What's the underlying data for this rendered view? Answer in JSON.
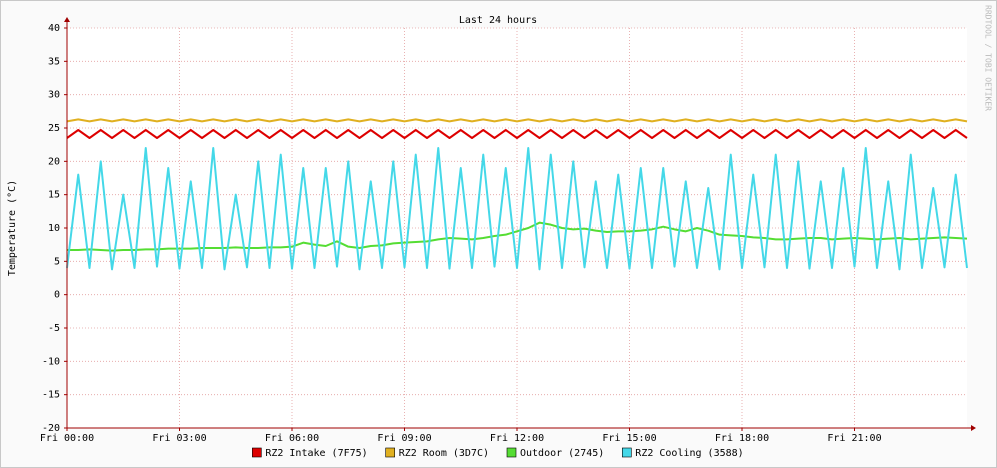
{
  "chart_data": {
    "type": "line",
    "title": "Last 24 hours",
    "y_label": "Temperature (°C)",
    "watermark": "RRDTOOL / TOBI OETIKER",
    "x": [
      0,
      0.3,
      0.6,
      0.9,
      1.2,
      1.5,
      1.8,
      2.1,
      2.4,
      2.7,
      3,
      3.3,
      3.6,
      3.9,
      4.2,
      4.5,
      4.8,
      5.1,
      5.4,
      5.7,
      6,
      6.3,
      6.6,
      6.9,
      7.2,
      7.5,
      7.8,
      8.1,
      8.4,
      8.7,
      9,
      9.3,
      9.6,
      9.9,
      10.2,
      10.5,
      10.8,
      11.1,
      11.4,
      11.7,
      12,
      12.3,
      12.6,
      12.9,
      13.2,
      13.5,
      13.8,
      14.1,
      14.4,
      14.7,
      15,
      15.3,
      15.6,
      15.9,
      16.2,
      16.5,
      16.8,
      17.1,
      17.4,
      17.7,
      18,
      18.3,
      18.6,
      18.9,
      19.2,
      19.5,
      19.8,
      20.1,
      20.4,
      20.7,
      21,
      21.3,
      21.6,
      21.9,
      22.2,
      22.5,
      22.8,
      23.1,
      23.4,
      23.7,
      24
    ],
    "xlim": [
      0,
      24
    ],
    "xticks": [
      {
        "value": 0,
        "label": "Fri 00:00"
      },
      {
        "value": 3,
        "label": "Fri 03:00"
      },
      {
        "value": 6,
        "label": "Fri 06:00"
      },
      {
        "value": 9,
        "label": "Fri 09:00"
      },
      {
        "value": 12,
        "label": "Fri 12:00"
      },
      {
        "value": 15,
        "label": "Fri 15:00"
      },
      {
        "value": 18,
        "label": "Fri 18:00"
      },
      {
        "value": 21,
        "label": "Fri 21:00"
      }
    ],
    "ylim": [
      -20,
      40
    ],
    "yticks": [
      -20,
      -15,
      -10,
      -5,
      0,
      5,
      10,
      15,
      20,
      25,
      30,
      35,
      40
    ],
    "grid": true,
    "legend": "bottom",
    "series": [
      {
        "name": "RZ2 Intake (7F75)",
        "color": "#dd0000",
        "values": [
          23.5,
          24.7,
          23.5,
          24.7,
          23.5,
          24.7,
          23.5,
          24.7,
          23.5,
          24.7,
          23.5,
          24.7,
          23.5,
          24.7,
          23.5,
          24.7,
          23.5,
          24.7,
          23.5,
          24.7,
          23.5,
          24.7,
          23.5,
          24.7,
          23.5,
          24.7,
          23.5,
          24.7,
          23.5,
          24.7,
          23.5,
          24.7,
          23.5,
          24.7,
          23.5,
          24.7,
          23.5,
          24.7,
          23.5,
          24.7,
          23.5,
          24.7,
          23.5,
          24.7,
          23.5,
          24.7,
          23.5,
          24.7,
          23.5,
          24.7,
          23.5,
          24.7,
          23.5,
          24.7,
          23.5,
          24.7,
          23.5,
          24.7,
          23.5,
          24.7,
          23.5,
          24.7,
          23.5,
          24.7,
          23.5,
          24.7,
          23.5,
          24.7,
          23.5,
          24.7,
          23.5,
          24.7,
          23.5,
          24.7,
          23.5,
          24.7,
          23.5,
          24.7,
          23.5,
          24.7,
          23.5
        ]
      },
      {
        "name": "RZ2 Room (3D7C)",
        "color": "#e0b020",
        "values": [
          26,
          26.3,
          26,
          26.3,
          26,
          26.3,
          26,
          26.3,
          26,
          26.3,
          26,
          26.3,
          26,
          26.3,
          26,
          26.3,
          26,
          26.3,
          26,
          26.3,
          26,
          26.3,
          26,
          26.3,
          26,
          26.3,
          26,
          26.3,
          26,
          26.3,
          26,
          26.3,
          26,
          26.3,
          26,
          26.3,
          26,
          26.3,
          26,
          26.3,
          26,
          26.3,
          26,
          26.3,
          26,
          26.3,
          26,
          26.3,
          26,
          26.3,
          26,
          26.3,
          26,
          26.3,
          26,
          26.3,
          26,
          26.3,
          26,
          26.3,
          26,
          26.3,
          26,
          26.3,
          26,
          26.3,
          26,
          26.3,
          26,
          26.3,
          26,
          26.3,
          26,
          26.3,
          26,
          26.3,
          26,
          26.3,
          26,
          26.3,
          26
        ]
      },
      {
        "name": "Outdoor (2745)",
        "color": "#55dd33",
        "values": [
          6.7,
          6.7,
          6.8,
          6.7,
          6.6,
          6.7,
          6.7,
          6.8,
          6.8,
          6.9,
          6.9,
          6.9,
          7.0,
          7.0,
          7.0,
          7.1,
          7.0,
          7.0,
          7.1,
          7.1,
          7.2,
          7.8,
          7.5,
          7.3,
          8.0,
          7.2,
          7.0,
          7.3,
          7.4,
          7.7,
          7.8,
          7.9,
          8.0,
          8.3,
          8.5,
          8.4,
          8.3,
          8.5,
          8.8,
          9.0,
          9.5,
          10.0,
          10.8,
          10.5,
          10.0,
          9.8,
          9.9,
          9.6,
          9.4,
          9.5,
          9.5,
          9.6,
          9.8,
          10.2,
          9.8,
          9.5,
          10.0,
          9.6,
          9.0,
          8.9,
          8.8,
          8.6,
          8.5,
          8.3,
          8.3,
          8.4,
          8.5,
          8.5,
          8.3,
          8.4,
          8.5,
          8.4,
          8.3,
          8.4,
          8.5,
          8.3,
          8.4,
          8.5,
          8.6,
          8.5,
          8.4
        ]
      },
      {
        "name": "RZ2 Cooling (3588)",
        "color": "#44d8e8",
        "values": [
          4,
          18,
          4,
          20,
          3.8,
          15,
          4,
          22,
          4.2,
          19,
          3.9,
          17,
          4,
          22,
          3.8,
          15,
          4.1,
          20,
          4,
          21,
          3.9,
          19,
          4,
          19,
          4.2,
          20,
          3.8,
          17,
          4,
          20,
          4.1,
          21,
          4,
          22,
          3.9,
          19,
          4,
          21,
          4.2,
          19,
          4,
          22,
          3.8,
          21,
          4,
          20,
          4.1,
          17,
          4,
          18,
          3.9,
          19,
          4,
          19,
          4.2,
          17,
          4,
          16,
          3.8,
          21,
          4,
          18,
          4.1,
          21,
          4,
          20,
          3.9,
          17,
          4,
          19,
          4.2,
          22,
          4,
          17,
          3.8,
          21,
          4,
          16,
          4.1,
          18,
          4
        ]
      }
    ]
  }
}
